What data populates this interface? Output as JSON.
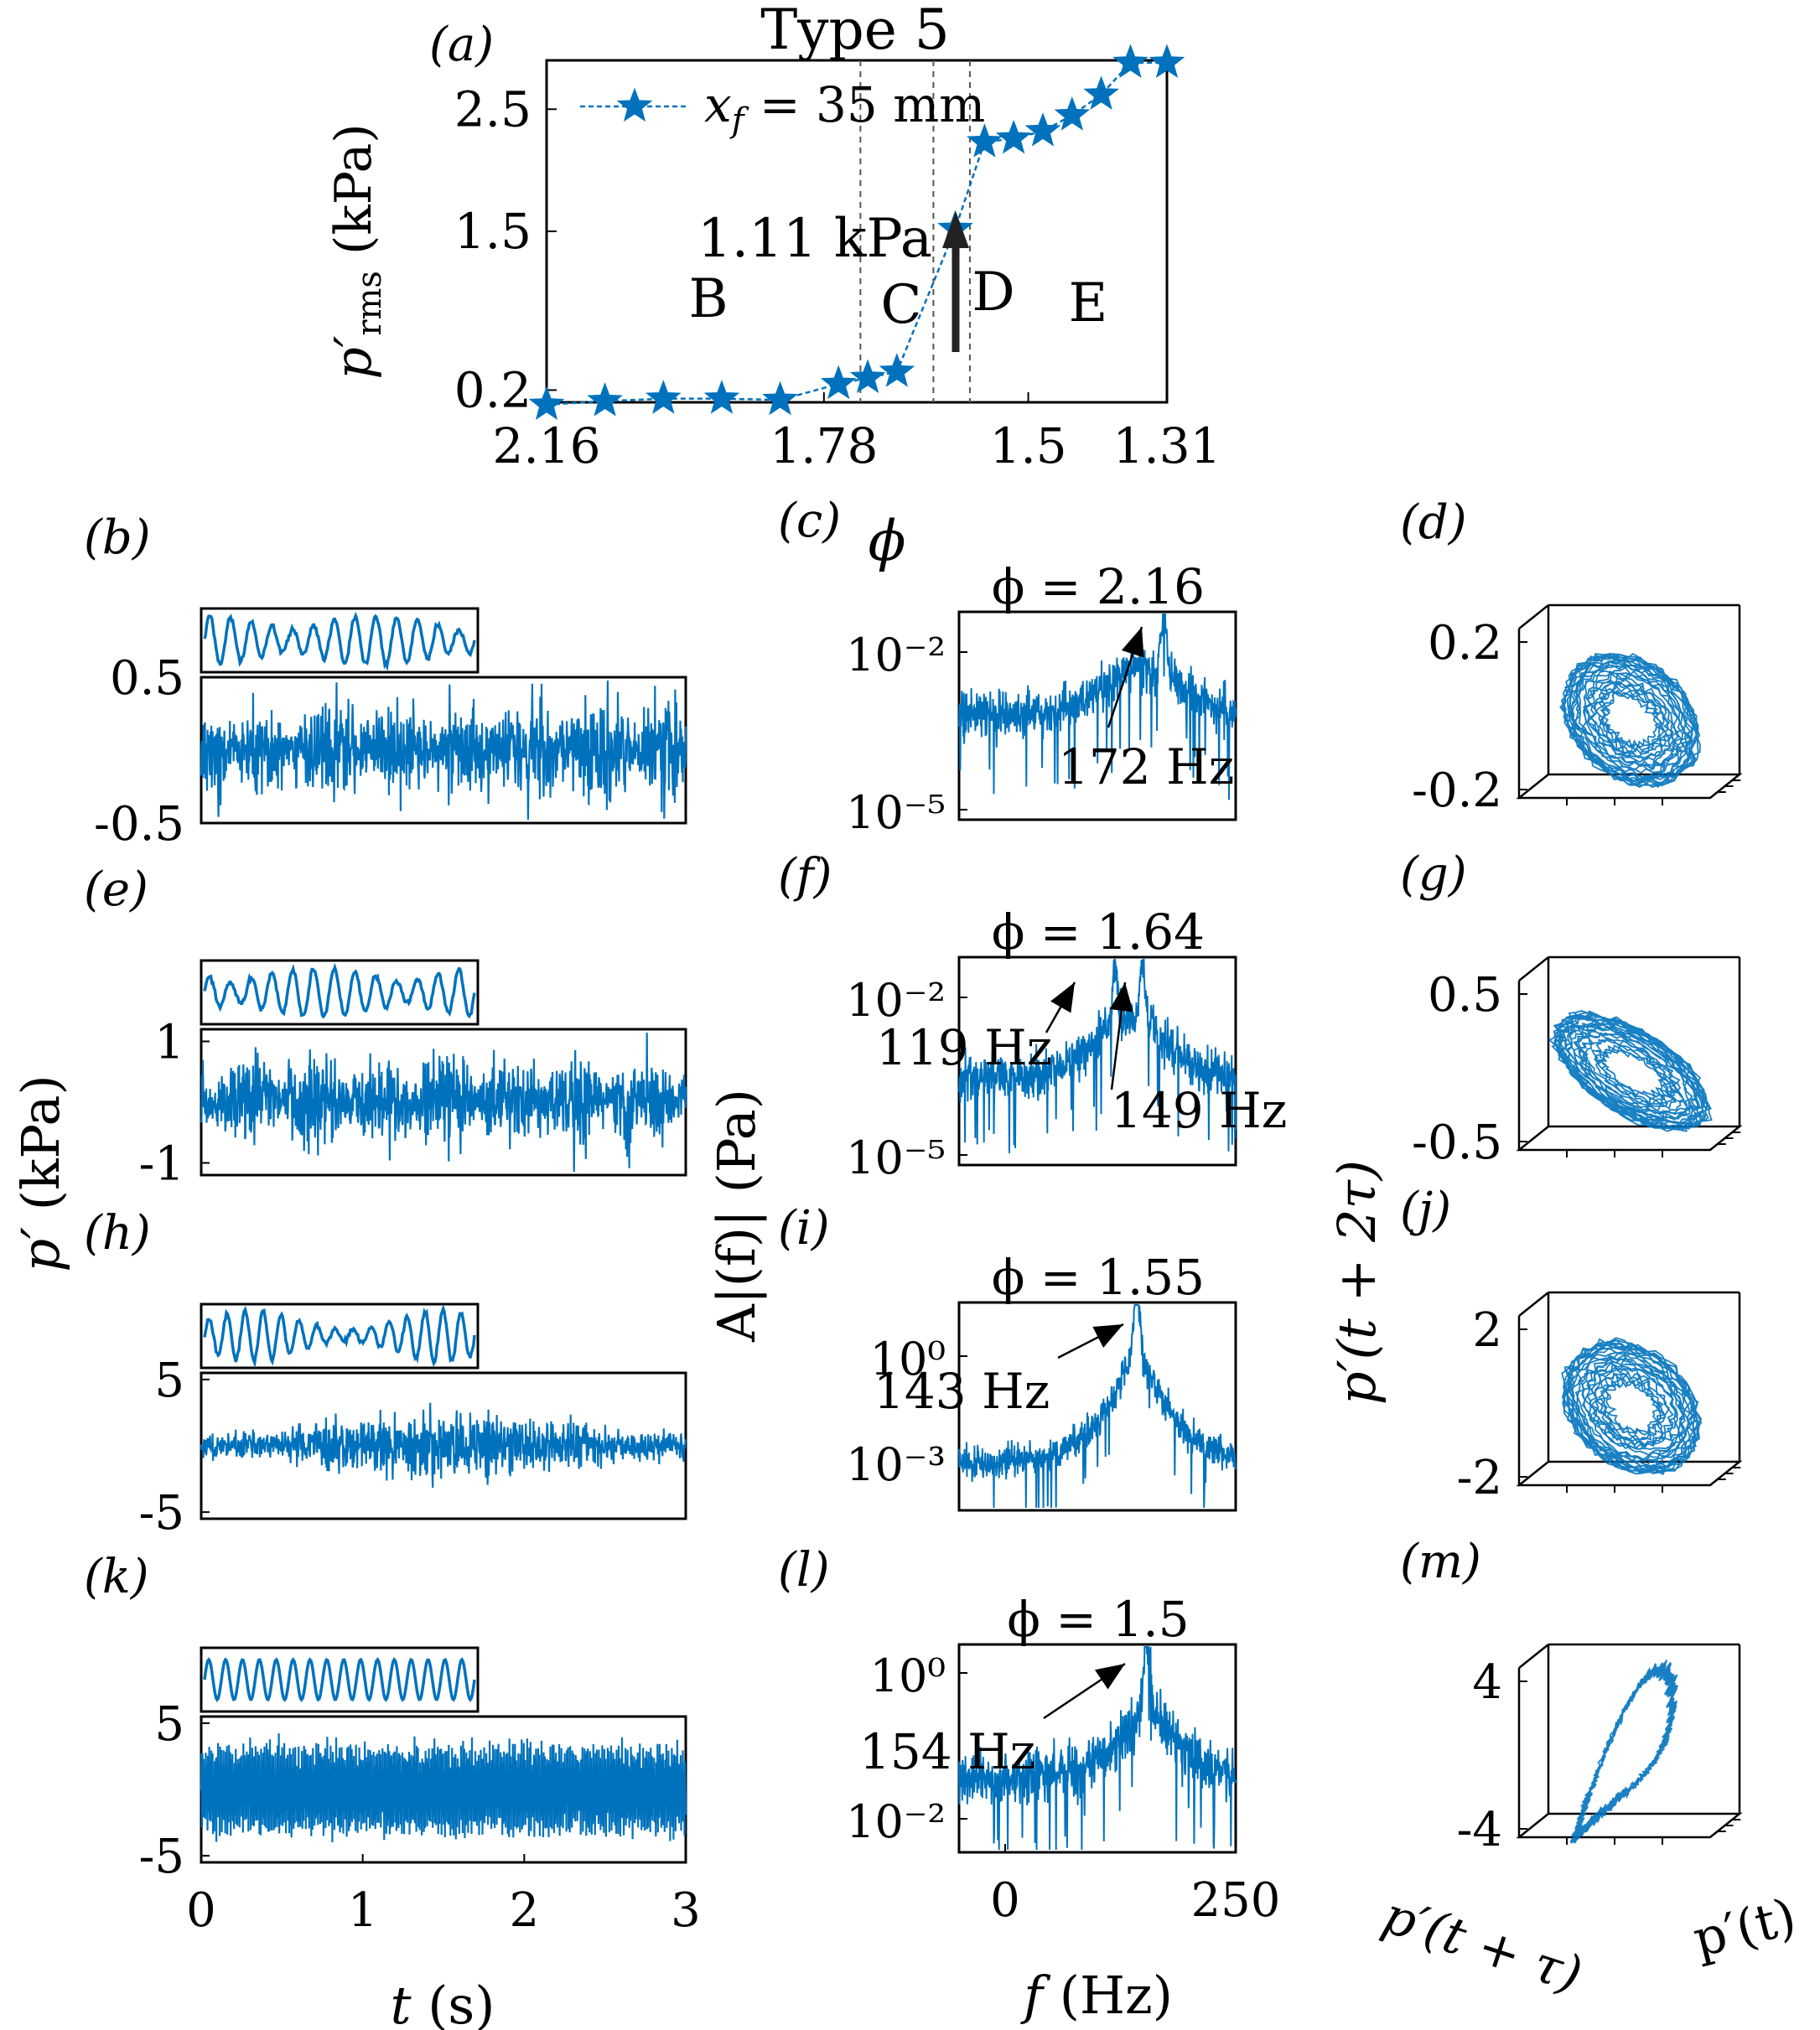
{
  "figure": {
    "palette": {
      "series": "#0072bd",
      "axis": "#000000",
      "guide": "#555555",
      "annotation": "#222222"
    }
  },
  "chart_data": [
    {
      "id": "a",
      "type": "line",
      "panel_label": "(a)",
      "title": "Type 5",
      "xlabel": "ϕ",
      "ylabel": "p′rms (kPa)",
      "x_reversed": true,
      "xlim": [
        2.16,
        1.31
      ],
      "ylim": [
        0.1,
        2.9
      ],
      "x_ticks": [
        "2.16",
        "1.78",
        "1.5",
        "1.31"
      ],
      "y_ticks": [
        "0.2",
        "1.5",
        "2.5"
      ],
      "legend": {
        "position": "top-left",
        "entries": [
          "x_f = 35 mm"
        ]
      },
      "series": [
        {
          "name": "x_f = 35 mm",
          "x": [
            2.16,
            2.08,
            2.0,
            1.92,
            1.84,
            1.76,
            1.72,
            1.68,
            1.6,
            1.56,
            1.52,
            1.48,
            1.44,
            1.4,
            1.36,
            1.31
          ],
          "y": [
            0.08,
            0.11,
            0.13,
            0.13,
            0.12,
            0.25,
            0.3,
            0.35,
            1.52,
            2.23,
            2.26,
            2.32,
            2.45,
            2.62,
            2.88,
            2.88
          ]
        }
      ],
      "regions": [
        "B",
        "C",
        "D",
        "E"
      ],
      "region_bounds_phi": [
        1.73,
        1.63,
        1.58
      ],
      "annotations": [
        "1.11 kPa"
      ]
    },
    {
      "id": "b",
      "type": "line",
      "panel_label": "(b)",
      "ylim": [
        -0.5,
        0.5
      ],
      "y_ticks": [
        "0.5",
        "-0.5"
      ],
      "xlim": [
        0,
        3
      ],
      "amplitude": 0.22,
      "signal_kind": "noisy",
      "seed": 11
    },
    {
      "id": "c",
      "type": "line",
      "panel_label": "(c)",
      "title": "ϕ = 2.16",
      "ylim": [
        -5,
        -1
      ],
      "y_ticks": [
        "10⁻²",
        "10⁻⁵"
      ],
      "peaks": [
        {
          "freq_hz": 172,
          "label": "172 Hz"
        }
      ],
      "xlim": [
        -50,
        250
      ],
      "seed": 21
    },
    {
      "id": "d",
      "type": "scatter",
      "panel_label": "(d)",
      "z_ticks": [
        "0.2",
        "-0.2"
      ],
      "zlim": [
        -0.25,
        0.25
      ],
      "shape": "blob",
      "seed": 31
    },
    {
      "id": "e",
      "type": "line",
      "panel_label": "(e)",
      "ylim": [
        -1.2,
        1.2
      ],
      "y_ticks": [
        "1",
        "-1"
      ],
      "xlim": [
        0,
        3
      ],
      "amplitude": 0.5,
      "signal_kind": "noisy",
      "seed": 12
    },
    {
      "id": "f",
      "type": "line",
      "panel_label": "(f)",
      "title": "ϕ = 1.64",
      "ylim": [
        -5,
        -1
      ],
      "y_ticks": [
        "10⁻²",
        "10⁻⁵"
      ],
      "peaks": [
        {
          "freq_hz": 119,
          "label": "119 Hz"
        },
        {
          "freq_hz": 149,
          "label": "149 Hz"
        }
      ],
      "xlim": [
        -50,
        250
      ],
      "seed": 22
    },
    {
      "id": "g",
      "type": "scatter",
      "panel_label": "(g)",
      "z_ticks": [
        "0.5",
        "-0.5"
      ],
      "zlim": [
        -0.6,
        0.6
      ],
      "shape": "blob",
      "seed": 32
    },
    {
      "id": "h",
      "type": "line",
      "panel_label": "(h)",
      "ylim": [
        -5.5,
        5.5
      ],
      "y_ticks": [
        "5",
        "-5"
      ],
      "xlim": [
        0,
        3
      ],
      "amplitude": 1.8,
      "signal_kind": "modulated",
      "seed": 13
    },
    {
      "id": "i",
      "type": "line",
      "panel_label": "(i)",
      "title": "ϕ = 1.55",
      "ylim": [
        -4.5,
        1
      ],
      "y_ticks": [
        "10⁰",
        "10⁻³"
      ],
      "peaks": [
        {
          "freq_hz": 143,
          "label": "143 Hz"
        }
      ],
      "xlim": [
        -50,
        250
      ],
      "seed": 23
    },
    {
      "id": "j",
      "type": "scatter",
      "panel_label": "(j)",
      "z_ticks": [
        "2",
        "-2"
      ],
      "zlim": [
        -2.4,
        2.4
      ],
      "shape": "blob",
      "seed": 33
    },
    {
      "id": "k",
      "type": "line",
      "panel_label": "(k)",
      "ylim": [
        -5.5,
        5.5
      ],
      "y_ticks": [
        "5",
        "-5"
      ],
      "x_ticks": [
        "0",
        "1",
        "2",
        "3"
      ],
      "xlabel": "t (s)",
      "xlim": [
        0,
        3
      ],
      "amplitude": 3.6,
      "signal_kind": "periodic",
      "seed": 14
    },
    {
      "id": "l",
      "type": "line",
      "panel_label": "(l)",
      "title": "ϕ = 1.5",
      "ylim": [
        -3,
        0.5
      ],
      "y_ticks": [
        "10⁰",
        "10⁻²"
      ],
      "x_ticks": [
        "0",
        "250"
      ],
      "xlabel": "f (Hz)",
      "peaks": [
        {
          "freq_hz": 154,
          "label": "154 Hz"
        }
      ],
      "xlim": [
        -50,
        250
      ],
      "seed": 24
    },
    {
      "id": "m",
      "type": "scatter",
      "panel_label": "(m)",
      "z_ticks": [
        "4",
        "-4"
      ],
      "zlim": [
        -4.5,
        4.5
      ],
      "x_axis_label": "p′(t)",
      "y_axis_label": "p′(t + τ)",
      "shape": "limit-cycle",
      "seed": 34
    }
  ],
  "shared_labels": {
    "time_ylabel": "p′ (kPa)",
    "spectrum_ylabel": "A|(f)| (Pa)",
    "phase_zlabel": "p′(t + 2τ)"
  }
}
